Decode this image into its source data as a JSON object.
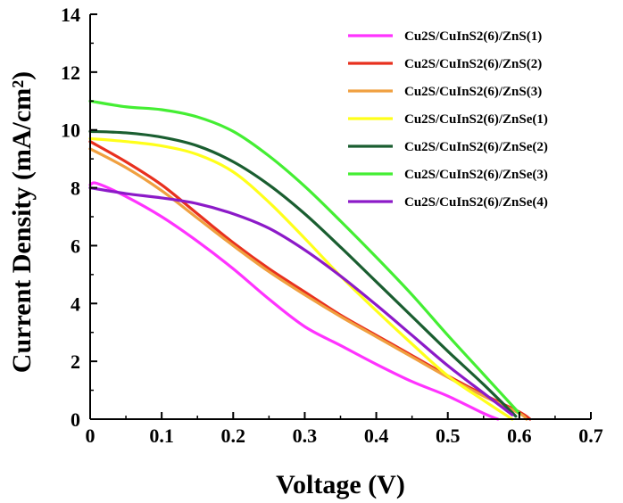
{
  "chart_data": {
    "type": "line",
    "xlabel": "Voltage (V)",
    "ylabel": "Current Density (mA/cm²)",
    "xlim": [
      0,
      0.7
    ],
    "ylim": [
      0,
      14
    ],
    "xticks": [
      "0",
      "0.1",
      "0.2",
      "0.3",
      "0.4",
      "0.5",
      "0.6",
      "0.7"
    ],
    "yticks": [
      "0",
      "2",
      "4",
      "6",
      "8",
      "10",
      "12",
      "14"
    ],
    "legend_position": "top-right",
    "grid": false,
    "series": [
      {
        "name": "Cu2S/CuInS2(6)/ZnS(1)",
        "color": "#ff33ff",
        "x": [
          0,
          0.01,
          0.05,
          0.1,
          0.15,
          0.2,
          0.25,
          0.3,
          0.35,
          0.4,
          0.45,
          0.5,
          0.55,
          0.57
        ],
        "y": [
          8.1,
          8.15,
          7.7,
          7.0,
          6.15,
          5.2,
          4.15,
          3.2,
          2.55,
          1.9,
          1.3,
          0.8,
          0.2,
          0.0
        ]
      },
      {
        "name": "Cu2S/CuInS2(6)/ZnS(2)",
        "color": "#e8301e",
        "x": [
          0,
          0.05,
          0.1,
          0.15,
          0.2,
          0.25,
          0.3,
          0.35,
          0.4,
          0.45,
          0.5,
          0.55,
          0.6,
          0.615
        ],
        "y": [
          9.6,
          8.9,
          8.1,
          7.1,
          6.1,
          5.2,
          4.4,
          3.6,
          2.9,
          2.2,
          1.5,
          0.85,
          0.25,
          0.0
        ]
      },
      {
        "name": "Cu2S/CuInS2(6)/ZnS(3)",
        "color": "#f0a040",
        "x": [
          0,
          0.05,
          0.1,
          0.15,
          0.2,
          0.25,
          0.3,
          0.35,
          0.4,
          0.45,
          0.5,
          0.55,
          0.6,
          0.61
        ],
        "y": [
          9.35,
          8.7,
          7.9,
          6.95,
          6.0,
          5.1,
          4.3,
          3.55,
          2.85,
          2.15,
          1.45,
          0.8,
          0.2,
          0.0
        ]
      },
      {
        "name": "Cu2S/CuInS2(6)/ZnSe(1)",
        "color": "#ffff1a",
        "x": [
          0,
          0.05,
          0.1,
          0.15,
          0.2,
          0.25,
          0.3,
          0.35,
          0.4,
          0.45,
          0.5,
          0.55,
          0.59
        ],
        "y": [
          9.7,
          9.6,
          9.45,
          9.15,
          8.55,
          7.5,
          6.25,
          4.95,
          3.75,
          2.6,
          1.5,
          0.65,
          0.0
        ]
      },
      {
        "name": "Cu2S/CuInS2(6)/ZnSe(2)",
        "color": "#1a5e30",
        "x": [
          0,
          0.05,
          0.1,
          0.15,
          0.2,
          0.25,
          0.3,
          0.35,
          0.4,
          0.45,
          0.5,
          0.55,
          0.595
        ],
        "y": [
          9.95,
          9.9,
          9.75,
          9.45,
          8.9,
          8.1,
          7.1,
          5.95,
          4.75,
          3.55,
          2.35,
          1.2,
          0.1
        ]
      },
      {
        "name": "Cu2S/CuInS2(6)/ZnSe(3)",
        "color": "#44ee33",
        "x": [
          0,
          0.05,
          0.1,
          0.15,
          0.2,
          0.25,
          0.3,
          0.35,
          0.4,
          0.45,
          0.5,
          0.55,
          0.6
        ],
        "y": [
          11.0,
          10.8,
          10.7,
          10.45,
          9.95,
          9.1,
          8.05,
          6.85,
          5.6,
          4.3,
          2.9,
          1.55,
          0.2
        ]
      },
      {
        "name": "Cu2S/CuInS2(6)/ZnSe(4)",
        "color": "#8c1ac8",
        "x": [
          0,
          0.05,
          0.1,
          0.15,
          0.2,
          0.25,
          0.3,
          0.35,
          0.4,
          0.45,
          0.5,
          0.55,
          0.59
        ],
        "y": [
          8.0,
          7.8,
          7.65,
          7.45,
          7.1,
          6.6,
          5.85,
          4.95,
          3.95,
          2.9,
          1.85,
          0.9,
          0.15
        ]
      }
    ]
  }
}
